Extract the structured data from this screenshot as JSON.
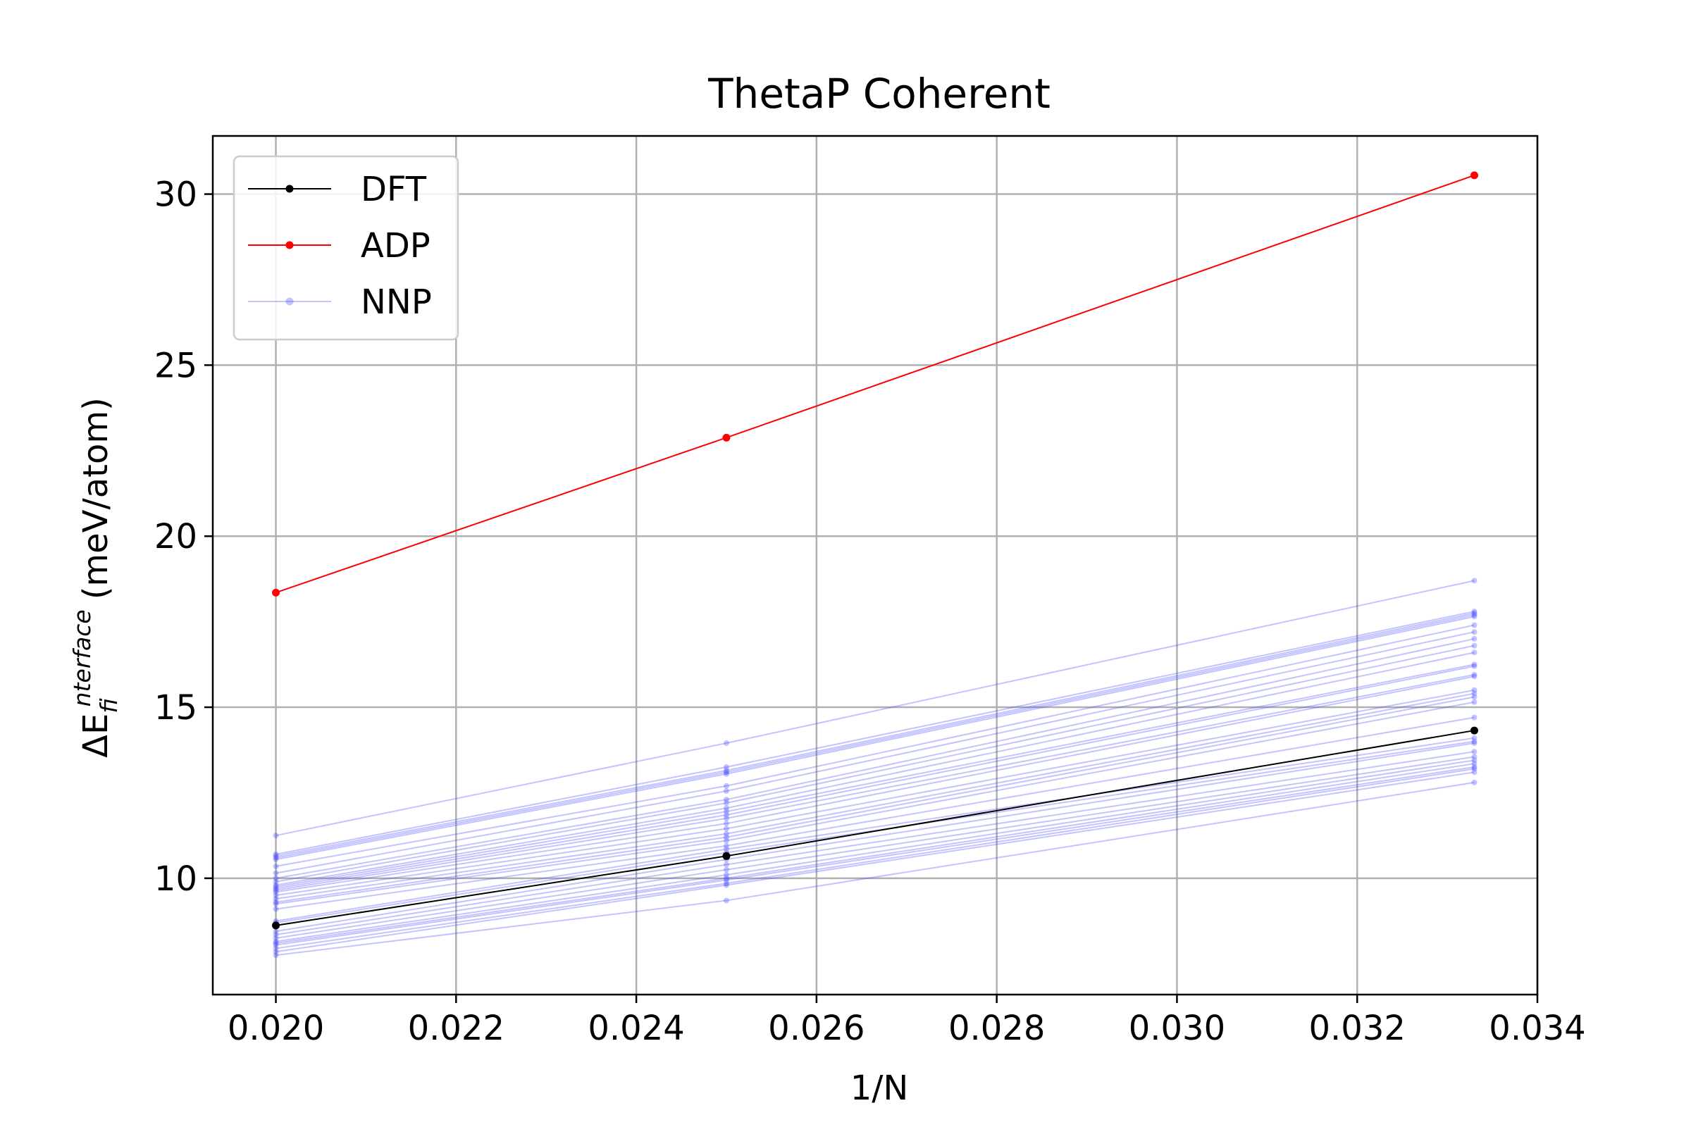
{
  "chart_data": {
    "type": "line",
    "title": "ThetaP Coherent",
    "xlabel": "1/N",
    "ylabel_prefix": "ΔE",
    "ylabel_sub": "f",
    "ylabel_sup": "interface",
    "ylabel_unit": "(meV/atom)",
    "xlim": [
      0.0193,
      0.034
    ],
    "ylim": [
      6.6,
      31.7
    ],
    "xticks": [
      0.02,
      0.022,
      0.024,
      0.026,
      0.028,
      0.03,
      0.032,
      0.034
    ],
    "xtick_labels": [
      "0.020",
      "0.022",
      "0.024",
      "0.026",
      "0.028",
      "0.030",
      "0.032",
      "0.034"
    ],
    "yticks": [
      10,
      15,
      20,
      25,
      30
    ],
    "ytick_labels": [
      "10",
      "15",
      "20",
      "25",
      "30"
    ],
    "grid": true,
    "legend_position": "top-left",
    "x": [
      0.02,
      0.025,
      0.0333
    ],
    "series": [
      {
        "name": "DFT",
        "color": "#000000",
        "values": [
          8.62,
          10.65,
          14.32
        ]
      },
      {
        "name": "ADP",
        "color": "#ff0000",
        "values": [
          18.35,
          22.88,
          30.55
        ]
      },
      {
        "name": "NNP",
        "color": "#4444ff",
        "ensemble": [
          [
            11.25,
            13.95,
            18.7
          ],
          [
            10.7,
            13.25,
            17.8
          ],
          [
            10.65,
            13.15,
            17.75
          ],
          [
            10.6,
            13.1,
            17.7
          ],
          [
            10.55,
            13.05,
            17.65
          ],
          [
            10.35,
            12.7,
            17.4
          ],
          [
            10.15,
            12.55,
            17.2
          ],
          [
            10.0,
            12.3,
            17.0
          ],
          [
            9.9,
            12.2,
            16.8
          ],
          [
            9.8,
            12.05,
            16.6
          ],
          [
            9.75,
            11.95,
            16.25
          ],
          [
            9.7,
            11.85,
            16.2
          ],
          [
            9.65,
            11.75,
            15.95
          ],
          [
            9.6,
            11.6,
            15.9
          ],
          [
            9.5,
            11.45,
            15.5
          ],
          [
            9.4,
            11.3,
            15.4
          ],
          [
            9.3,
            11.2,
            15.3
          ],
          [
            9.25,
            11.1,
            15.15
          ],
          [
            9.1,
            10.95,
            14.7
          ],
          [
            8.75,
            10.85,
            14.1
          ],
          [
            8.7,
            10.75,
            14.0
          ],
          [
            8.45,
            10.55,
            13.95
          ],
          [
            8.35,
            10.4,
            13.7
          ],
          [
            8.25,
            10.25,
            13.55
          ],
          [
            8.15,
            10.1,
            13.45
          ],
          [
            8.1,
            10.0,
            13.35
          ],
          [
            8.05,
            9.95,
            13.25
          ],
          [
            7.95,
            9.85,
            13.2
          ],
          [
            7.85,
            9.8,
            13.1
          ],
          [
            7.75,
            9.35,
            12.8
          ]
        ]
      }
    ]
  }
}
